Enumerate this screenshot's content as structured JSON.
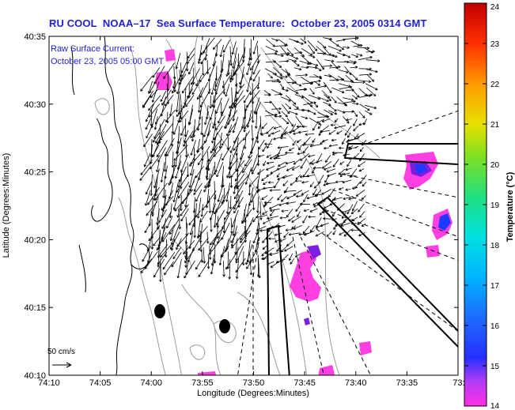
{
  "title": "RU COOL  NOAA–17  Sea Surface Temperature:  October 23, 2005 0314 GMT",
  "overlay": {
    "line1": "Raw Surface Current:",
    "line2": "October 23, 2005 05:00 GMT"
  },
  "scale_label": "50 cm/s",
  "axes": {
    "xlabel": "Longitude (Degrees:Minutes)",
    "ylabel": "Latitude (Degrees:Minutes)",
    "xticks": [
      "74:10",
      "74:05",
      "74:00",
      "73:55",
      "73:50",
      "73:45",
      "73:40",
      "73:35",
      "73:3"
    ],
    "yticks": [
      "40:35",
      "40:30",
      "40:25",
      "40:20",
      "40:15",
      "40:10"
    ]
  },
  "colorbar": {
    "label": "Temperature (°C)",
    "ticks": [
      "24",
      "23",
      "22",
      "21",
      "20",
      "19",
      "18",
      "17",
      "16",
      "15",
      "14"
    ],
    "min": 14,
    "max": 24
  },
  "colors": {
    "title": "#1f1fd6",
    "sst_cold": "#ff3fe0",
    "sst_mid": "#7a1fe0",
    "sst_blue": "#1d3bff",
    "land_contour": "#000000",
    "bathy": "#9a9a9a"
  }
}
